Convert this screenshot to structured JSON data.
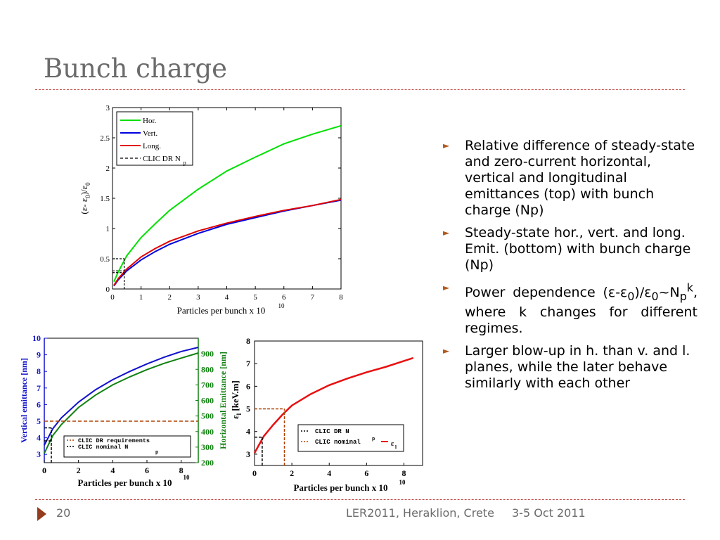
{
  "slide": {
    "title": "Bunch charge",
    "page_number": "20",
    "footer_event": "LER2011, Heraklion, Crete",
    "footer_date": "3-5 Oct 2011"
  },
  "bullets": [
    "Relative difference of steady-state and zero-current horizontal, vertical and longitudinal emittances (top) with bunch charge (Np)",
    "Steady-state hor., vert. and long. Emit. (bottom) with bunch charge (Np)",
    "Larger blow-up in h. than v. and l. planes, while the later behave similarly with each other"
  ],
  "bullet_power": {
    "part1": "Power dependence (ε-ε",
    "sub0a": "0",
    "part2": ")/ε",
    "sub0b": "0",
    "part3": "~N",
    "subp": "p",
    "supk": "k",
    "part4": ", where k changes for different regimes."
  },
  "colors": {
    "hor": "#00e000",
    "vert": "#0000e0",
    "long": "#e00000",
    "vert_emit": "#1010cc",
    "hor_emit": "#108010",
    "el": "#e81010",
    "req": "#b04000",
    "accent": "#c0504d"
  },
  "chart_data": [
    {
      "id": "top",
      "type": "line",
      "xlabel": "Particles per bunch x 10",
      "xlabel_exp": "10",
      "ylabel": "(ε- ε",
      "ylabel_sub": "0",
      "ylabel_mid": ")/ε",
      "ylabel_sub2": "0",
      "xlim": [
        0,
        8
      ],
      "ylim": [
        0,
        3
      ],
      "xticks": [
        "0",
        "1",
        "2",
        "3",
        "4",
        "5",
        "6",
        "7",
        "8"
      ],
      "yticks": [
        "0",
        "0.5",
        "1",
        "1.5",
        "2",
        "2.5",
        "3"
      ],
      "legend_position": "top-left",
      "series": [
        {
          "name": "Hor.",
          "x": [
            0.05,
            0.2,
            0.5,
            1,
            1.5,
            2,
            3,
            4,
            5,
            6,
            7,
            8
          ],
          "values": [
            0.12,
            0.28,
            0.55,
            0.85,
            1.08,
            1.3,
            1.65,
            1.95,
            2.18,
            2.4,
            2.56,
            2.7
          ]
        },
        {
          "name": "Vert.",
          "x": [
            0.05,
            0.2,
            0.5,
            1,
            1.5,
            2,
            3,
            4,
            5,
            6,
            7,
            8
          ],
          "values": [
            0.05,
            0.15,
            0.3,
            0.48,
            0.62,
            0.74,
            0.92,
            1.07,
            1.18,
            1.29,
            1.38,
            1.47
          ]
        },
        {
          "name": "Long.",
          "x": [
            0.05,
            0.2,
            0.5,
            1,
            1.5,
            2,
            3,
            4,
            5,
            6,
            7,
            8
          ],
          "values": [
            0.06,
            0.17,
            0.33,
            0.53,
            0.67,
            0.79,
            0.96,
            1.09,
            1.2,
            1.3,
            1.38,
            1.48
          ]
        },
        {
          "name": "CLIC DR N",
          "name_sub": "p",
          "x": [
            0,
            0.41,
            0.41
          ],
          "values": [
            0.3,
            0.3,
            0
          ]
        }
      ],
      "markers": {
        "np_x": 0.41,
        "marker_levels": [
          0.27,
          0.3,
          0.5
        ]
      }
    },
    {
      "id": "bottom-left",
      "type": "line",
      "xlabel": "Particles per bunch x 10",
      "xlabel_exp": "10",
      "ylabel_left": "Vertical emittance [nm]",
      "ylabel_right": "Horizontal Emittance [nm]",
      "xlim": [
        0,
        9
      ],
      "ylim_left": [
        2.5,
        10
      ],
      "ylim_right": [
        200,
        1000
      ],
      "xticks": [
        "0",
        "2",
        "4",
        "6",
        "8"
      ],
      "yticks_left": [
        "3",
        "4",
        "5",
        "6",
        "7",
        "8",
        "9",
        "10"
      ],
      "yticks_right": [
        "200",
        "300",
        "400",
        "500",
        "600",
        "700",
        "800",
        "900"
      ],
      "legend_position": "bottom-center",
      "legend": [
        "CLIC DR requirements",
        "CLIC nominal N"
      ],
      "legend_sub": "p",
      "series": [
        {
          "axis": "left",
          "x": [
            0,
            0.5,
            1,
            2,
            3,
            4,
            5,
            6,
            7,
            8,
            9
          ],
          "values": [
            3.55,
            4.55,
            5.2,
            6.15,
            6.9,
            7.5,
            8.0,
            8.45,
            8.85,
            9.2,
            9.45
          ]
        },
        {
          "axis": "right",
          "x": [
            0,
            0.5,
            1,
            2,
            3,
            4,
            5,
            6,
            7,
            8,
            9
          ],
          "values": [
            260,
            375,
            445,
            555,
            635,
            700,
            752,
            798,
            838,
            872,
            905
          ]
        }
      ],
      "markers": {
        "requirement_left": 5,
        "requirement_right": 500,
        "nominal_x": 0.41,
        "nominal_left": 4.6,
        "nominal_right": 340
      }
    },
    {
      "id": "bottom-right",
      "type": "line",
      "xlabel": "Particles per bunch x 10",
      "xlabel_exp": "10",
      "ylabel": "ε",
      "ylabel_sub": "l",
      "ylabel_unit": " [keV.m]",
      "xlim": [
        0,
        9
      ],
      "ylim": [
        2.5,
        8
      ],
      "xticks": [
        "0",
        "2",
        "4",
        "6",
        "8"
      ],
      "yticks": [
        "3",
        "4",
        "5",
        "6",
        "7",
        "8"
      ],
      "legend_position": "bottom-right",
      "legend": [
        "CLIC DR N",
        "CLIC nominal"
      ],
      "legend_sub": "p",
      "legend_series_label": "ε",
      "legend_series_sub": "l",
      "series": [
        {
          "x": [
            0,
            0.2,
            0.5,
            1,
            1.5,
            2,
            3,
            4,
            5,
            6,
            7,
            8.5
          ],
          "values": [
            3.05,
            3.35,
            3.8,
            4.3,
            4.75,
            5.15,
            5.65,
            6.05,
            6.35,
            6.62,
            6.85,
            7.25
          ]
        }
      ],
      "markers": {
        "drnp_x": 0.41,
        "drnp_y": 3.75,
        "nominal_x": 1.6,
        "nominal_y": 5.0
      }
    }
  ]
}
